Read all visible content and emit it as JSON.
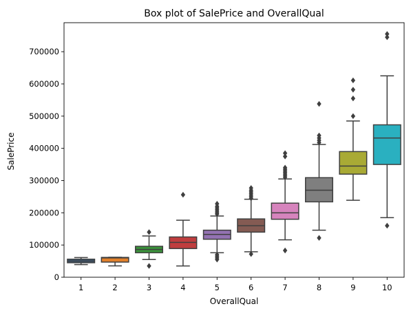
{
  "chart_data": {
    "type": "box",
    "title": "Box plot of SalePrice and OverallQual",
    "xlabel": "OverallQual",
    "ylabel": "SalePrice",
    "ylim": [
      0,
      790000
    ],
    "yticks": [
      0,
      100000,
      200000,
      300000,
      400000,
      500000,
      600000,
      700000
    ],
    "ytick_labels": [
      "0",
      "100000",
      "200000",
      "300000",
      "400000",
      "500000",
      "600000",
      "700000"
    ],
    "grid": false,
    "categories": [
      "1",
      "2",
      "3",
      "4",
      "5",
      "6",
      "7",
      "8",
      "9",
      "10"
    ],
    "colors": [
      "#3a5a7a",
      "#e1812c",
      "#3a923a",
      "#c03d3e",
      "#9372b2",
      "#845b53",
      "#d684bd",
      "#7f7f7f",
      "#a9aa35",
      "#2ab0c0"
    ],
    "boxes": [
      {
        "category": "1",
        "whisker_low": 39300,
        "q1": 45000,
        "median": 50150,
        "q3": 56000,
        "whisker_high": 61000,
        "outliers": []
      },
      {
        "category": "2",
        "whisker_low": 35300,
        "q1": 47000,
        "median": 60000,
        "q3": 61500,
        "whisker_high": 62000,
        "outliers": []
      },
      {
        "category": "3",
        "whisker_low": 55000,
        "q1": 76000,
        "median": 86250,
        "q3": 96000,
        "whisker_high": 128000,
        "outliers": [
          35000,
          140000
        ]
      },
      {
        "category": "4",
        "whisker_low": 34900,
        "q1": 89000,
        "median": 108000,
        "q3": 125000,
        "whisker_high": 177000,
        "outliers": [
          256000
        ]
      },
      {
        "category": "5",
        "whisker_low": 76000,
        "q1": 118000,
        "median": 133000,
        "q3": 146000,
        "whisker_high": 190000,
        "outliers": [
          55000,
          60000,
          65000,
          70000,
          196000,
          200000,
          205000,
          210000,
          215000,
          220000,
          228000
        ]
      },
      {
        "category": "6",
        "whisker_low": 79000,
        "q1": 140000,
        "median": 160000,
        "q3": 181000,
        "whisker_high": 242000,
        "outliers": [
          72000,
          245000,
          250000,
          255000,
          260000,
          265000,
          270000,
          277000
        ]
      },
      {
        "category": "7",
        "whisker_low": 116000,
        "q1": 180000,
        "median": 200000,
        "q3": 230000,
        "whisker_high": 305000,
        "outliers": [
          83000,
          310000,
          315000,
          320000,
          325000,
          330000,
          335000,
          340000,
          375000,
          385000
        ]
      },
      {
        "category": "8",
        "whisker_low": 146000,
        "q1": 234000,
        "median": 270000,
        "q3": 309000,
        "whisker_high": 412000,
        "outliers": [
          122000,
          418000,
          425000,
          432000,
          440000,
          538000
        ]
      },
      {
        "category": "9",
        "whisker_low": 239000,
        "q1": 320000,
        "median": 345000,
        "q3": 390000,
        "whisker_high": 485000,
        "outliers": [
          500000,
          555000,
          582000,
          611000
        ]
      },
      {
        "category": "10",
        "whisker_low": 185000,
        "q1": 350000,
        "median": 432000,
        "q3": 473000,
        "whisker_high": 625000,
        "outliers": [
          160000,
          745000,
          755000
        ]
      }
    ]
  }
}
